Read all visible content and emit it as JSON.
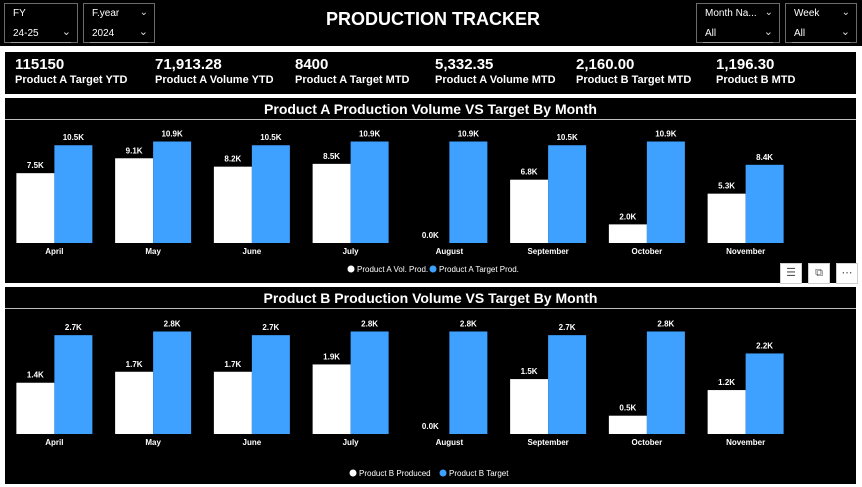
{
  "header": {
    "title": "PRODUCTION TRACKER",
    "slicers": [
      {
        "label": "FY",
        "value": "24-25"
      },
      {
        "label": "F.year",
        "value": "2024"
      },
      {
        "label": "Month Na...",
        "value": "All"
      },
      {
        "label": "Week",
        "value": "All"
      }
    ]
  },
  "kpis": [
    {
      "value": "115150",
      "label": "Product A Target YTD"
    },
    {
      "value": "71,913.28",
      "label": "Product A Volume YTD"
    },
    {
      "value": "8400",
      "label": "Product A Target MTD"
    },
    {
      "value": "5,332.35",
      "label": "Product A Volume MTD"
    },
    {
      "value": "2,160.00",
      "label": "Product B Target MTD"
    },
    {
      "value": "1,196.30",
      "label": "Product B MTD"
    }
  ],
  "visual_header_icons": [
    "filter-icon",
    "focus-mode-icon",
    "more-options-icon"
  ],
  "colors": {
    "produced": "#ffffff",
    "target": "#3ea0ff",
    "background": "#000000"
  },
  "chart_data": [
    {
      "type": "bar",
      "title": "Product A Production Volume VS Target By Month",
      "categories": [
        "April",
        "May",
        "June",
        "July",
        "August",
        "September",
        "October",
        "November"
      ],
      "series": [
        {
          "name": "Product A Vol. Prod.",
          "values": [
            7.5,
            9.1,
            8.2,
            8.5,
            0.0,
            6.8,
            2.0,
            5.3
          ],
          "labels": [
            "7.5K",
            "9.1K",
            "8.2K",
            "8.5K",
            "0.0K",
            "6.8K",
            "2.0K",
            "5.3K"
          ],
          "color": "#ffffff"
        },
        {
          "name": "Product A Target Prod.",
          "values": [
            10.5,
            10.9,
            10.5,
            10.9,
            10.9,
            10.5,
            10.9,
            8.4
          ],
          "labels": [
            "10.5K",
            "10.9K",
            "10.5K",
            "10.9K",
            "10.9K",
            "10.5K",
            "10.9K",
            "8.4K"
          ],
          "color": "#3ea0ff"
        }
      ],
      "ylim": [
        0,
        11.6
      ],
      "grid": false,
      "legend": "bottom-center"
    },
    {
      "type": "bar",
      "title": "Product B Production Volume VS Target By Month",
      "categories": [
        "April",
        "May",
        "June",
        "July",
        "August",
        "September",
        "October",
        "November"
      ],
      "series": [
        {
          "name": "Product B Produced",
          "values": [
            1.4,
            1.7,
            1.7,
            1.9,
            0.0,
            1.5,
            0.5,
            1.2
          ],
          "labels": [
            "1.4K",
            "1.7K",
            "1.7K",
            "1.9K",
            "0.0K",
            "1.5K",
            "0.5K",
            "1.2K"
          ],
          "color": "#ffffff"
        },
        {
          "name": "Product B Target",
          "values": [
            2.7,
            2.8,
            2.7,
            2.8,
            2.8,
            2.7,
            2.8,
            2.2
          ],
          "labels": [
            "2.7K",
            "2.8K",
            "2.7K",
            "2.8K",
            "2.8K",
            "2.7K",
            "2.8K",
            "2.2K"
          ],
          "color": "#3ea0ff"
        }
      ],
      "ylim": [
        0,
        2.95
      ],
      "grid": false,
      "legend": "bottom-center"
    }
  ]
}
